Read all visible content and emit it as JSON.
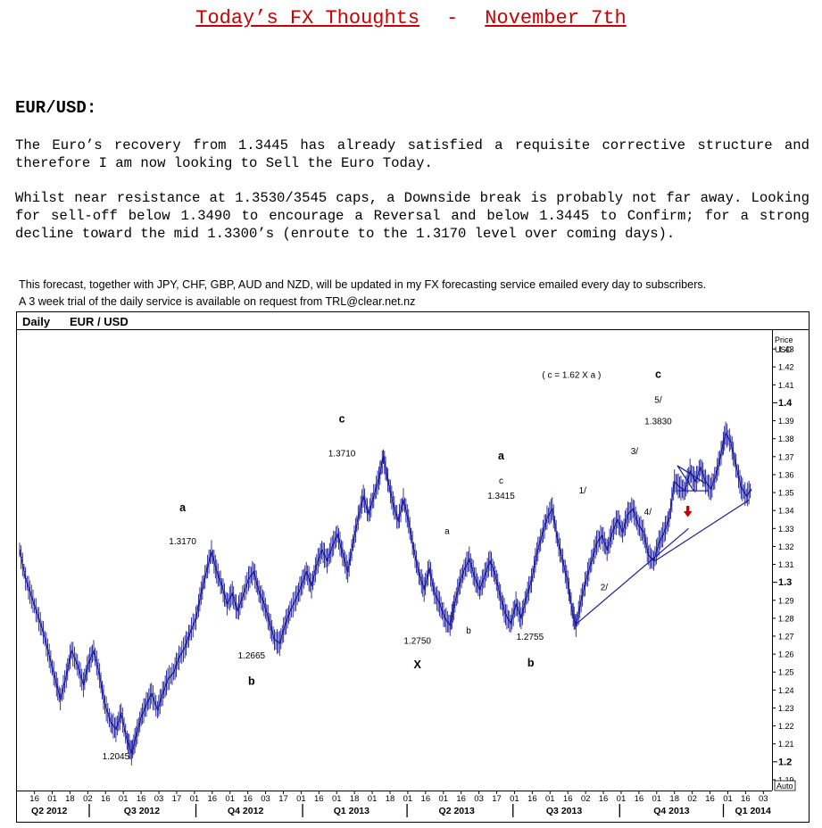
{
  "header": {
    "title_left": "Today’s FX Thoughts",
    "title_sep": "-",
    "title_right": "November 7th"
  },
  "section": {
    "title": "EUR/USD:",
    "paragraph1": "The Euro’s recovery from 1.3445 has already satisfied a requisite corrective structure and therefore I am now looking to Sell the Euro Today.",
    "paragraph2": "Whilst near resistance at 1.3530/3545 caps, a Downside break is probably not far away. Looking for sell-off below 1.3490 to encourage a Reversal and below 1.3445 to Confirm; for a strong decline toward the mid 1.3300’s (enroute to the 1.3170 level over coming days).",
    "note1": "This forecast, together with JPY, CHF, GBP, AUD and NZD, will be updated in my FX forecasting service emailed every day to subscribers.",
    "note2": "A 3 week trial of the daily service is available on request from TRL@clear.net.nz"
  },
  "chart_data": {
    "type": "line",
    "title": "EUR / USD",
    "period_label": "Daily",
    "ylabel": "Price USD",
    "auto_label": "Auto",
    "ylim": [
      1.185,
      1.44
    ],
    "y_ticks": [
      1.19,
      1.2,
      1.21,
      1.22,
      1.23,
      1.24,
      1.25,
      1.26,
      1.27,
      1.28,
      1.29,
      1.3,
      1.31,
      1.32,
      1.33,
      1.34,
      1.35,
      1.36,
      1.37,
      1.38,
      1.39,
      1.4,
      1.41,
      1.42,
      1.43
    ],
    "y_tick_labels": [
      "1.19",
      "1.2",
      "1.21",
      "1.22",
      "1.23",
      "1.24",
      "1.25",
      "1.26",
      "1.27",
      "1.28",
      "1.29",
      "1.3",
      "1.31",
      "1.32",
      "1.33",
      "1.34",
      "1.35",
      "1.36",
      "1.37",
      "1.38",
      "1.39",
      "1.4",
      "1.41",
      "1.42",
      "1.43"
    ],
    "y_bold_ticks": [
      1.2,
      1.3,
      1.4
    ],
    "x_range": [
      0,
      100
    ],
    "x_ticks": [
      {
        "x": 2.0,
        "label": "16"
      },
      {
        "x": 4.4,
        "label": "01"
      },
      {
        "x": 6.8,
        "label": "18"
      },
      {
        "x": 9.2,
        "label": "02"
      },
      {
        "x": 11.6,
        "label": "16"
      },
      {
        "x": 14.0,
        "label": "01"
      },
      {
        "x": 16.4,
        "label": "16"
      },
      {
        "x": 18.8,
        "label": "03"
      },
      {
        "x": 21.2,
        "label": "17"
      },
      {
        "x": 23.6,
        "label": "01"
      },
      {
        "x": 26.0,
        "label": "16"
      },
      {
        "x": 28.4,
        "label": "01"
      },
      {
        "x": 30.8,
        "label": "16"
      },
      {
        "x": 33.2,
        "label": "03"
      },
      {
        "x": 35.6,
        "label": "17"
      },
      {
        "x": 38.0,
        "label": "01"
      },
      {
        "x": 40.4,
        "label": "16"
      },
      {
        "x": 42.8,
        "label": "01"
      },
      {
        "x": 45.2,
        "label": "18"
      },
      {
        "x": 47.6,
        "label": "01"
      },
      {
        "x": 50.0,
        "label": "18"
      },
      {
        "x": 52.4,
        "label": "01"
      },
      {
        "x": 54.8,
        "label": "16"
      },
      {
        "x": 57.2,
        "label": "01"
      },
      {
        "x": 59.6,
        "label": "16"
      },
      {
        "x": 62.0,
        "label": "03"
      },
      {
        "x": 64.4,
        "label": "17"
      },
      {
        "x": 66.8,
        "label": "01"
      },
      {
        "x": 69.2,
        "label": "16"
      },
      {
        "x": 71.6,
        "label": "01"
      },
      {
        "x": 74.0,
        "label": "16"
      },
      {
        "x": 76.4,
        "label": "02"
      },
      {
        "x": 78.8,
        "label": "16"
      },
      {
        "x": 81.2,
        "label": "01"
      },
      {
        "x": 83.6,
        "label": "16"
      },
      {
        "x": 86.0,
        "label": "01"
      },
      {
        "x": 88.4,
        "label": "18"
      },
      {
        "x": 90.8,
        "label": "02"
      },
      {
        "x": 93.2,
        "label": "16"
      },
      {
        "x": 95.6,
        "label": "01"
      },
      {
        "x": 98.0,
        "label": "16"
      },
      {
        "x": 100.4,
        "label": "03"
      }
    ],
    "x_groups": [
      {
        "label": "Q2 2012",
        "x": 4.0,
        "sep": 9.4
      },
      {
        "label": "Q3 2012",
        "x": 16.5,
        "sep": 23.8
      },
      {
        "label": "Q4 2012",
        "x": 30.5,
        "sep": 38.2
      },
      {
        "label": "Q1 2013",
        "x": 44.8,
        "sep": 52.3
      },
      {
        "label": "Q2 2013",
        "x": 59.0,
        "sep": 66.6
      },
      {
        "label": "Q3 2013",
        "x": 73.5,
        "sep": 81.0
      },
      {
        "label": "Q4 2013",
        "x": 88.0,
        "sep": 95.0
      },
      {
        "label": "Q1 2014",
        "x": 99.0,
        "sep": null
      }
    ],
    "series": [
      {
        "values": [
          [
            0.0,
            1.318
          ],
          [
            0.8,
            1.302
          ],
          [
            1.6,
            1.292
          ],
          [
            2.4,
            1.282
          ],
          [
            3.2,
            1.272
          ],
          [
            4.0,
            1.259
          ],
          [
            4.8,
            1.246
          ],
          [
            5.5,
            1.235
          ],
          [
            6.3,
            1.248
          ],
          [
            7.0,
            1.262
          ],
          [
            7.8,
            1.254
          ],
          [
            8.6,
            1.243
          ],
          [
            9.3,
            1.255
          ],
          [
            10.0,
            1.262
          ],
          [
            10.8,
            1.248
          ],
          [
            11.5,
            1.232
          ],
          [
            12.3,
            1.222
          ],
          [
            13.0,
            1.218
          ],
          [
            13.7,
            1.227
          ],
          [
            14.5,
            1.212
          ],
          [
            15.1,
            1.205
          ],
          [
            15.7,
            1.214
          ],
          [
            16.4,
            1.225
          ],
          [
            17.1,
            1.232
          ],
          [
            17.8,
            1.238
          ],
          [
            18.6,
            1.229
          ],
          [
            19.3,
            1.238
          ],
          [
            20.0,
            1.246
          ],
          [
            20.8,
            1.25
          ],
          [
            21.5,
            1.258
          ],
          [
            22.3,
            1.264
          ],
          [
            23.0,
            1.272
          ],
          [
            23.8,
            1.28
          ],
          [
            24.5,
            1.294
          ],
          [
            25.2,
            1.306
          ],
          [
            25.9,
            1.317
          ],
          [
            26.6,
            1.306
          ],
          [
            27.3,
            1.298
          ],
          [
            28.0,
            1.288
          ],
          [
            28.7,
            1.294
          ],
          [
            29.4,
            1.284
          ],
          [
            30.1,
            1.292
          ],
          [
            30.9,
            1.302
          ],
          [
            31.6,
            1.306
          ],
          [
            32.3,
            1.295
          ],
          [
            33.0,
            1.288
          ],
          [
            33.7,
            1.278
          ],
          [
            34.4,
            1.268
          ],
          [
            35.1,
            1.266
          ],
          [
            35.8,
            1.276
          ],
          [
            36.5,
            1.284
          ],
          [
            37.3,
            1.291
          ],
          [
            38.0,
            1.298
          ],
          [
            38.7,
            1.306
          ],
          [
            39.4,
            1.298
          ],
          [
            40.1,
            1.31
          ],
          [
            40.8,
            1.318
          ],
          [
            41.5,
            1.312
          ],
          [
            42.2,
            1.32
          ],
          [
            42.9,
            1.327
          ],
          [
            43.6,
            1.316
          ],
          [
            44.3,
            1.306
          ],
          [
            45.0,
            1.322
          ],
          [
            45.7,
            1.336
          ],
          [
            46.4,
            1.348
          ],
          [
            47.1,
            1.338
          ],
          [
            47.8,
            1.348
          ],
          [
            48.5,
            1.358
          ],
          [
            49.1,
            1.37
          ],
          [
            49.7,
            1.357
          ],
          [
            50.4,
            1.344
          ],
          [
            51.1,
            1.334
          ],
          [
            51.8,
            1.346
          ],
          [
            52.5,
            1.334
          ],
          [
            53.2,
            1.318
          ],
          [
            53.9,
            1.305
          ],
          [
            54.6,
            1.296
          ],
          [
            55.3,
            1.308
          ],
          [
            56.0,
            1.294
          ],
          [
            56.7,
            1.288
          ],
          [
            57.4,
            1.28
          ],
          [
            58.1,
            1.276
          ],
          [
            58.6,
            1.286
          ],
          [
            59.3,
            1.298
          ],
          [
            60.0,
            1.307
          ],
          [
            60.7,
            1.313
          ],
          [
            61.4,
            1.303
          ],
          [
            62.1,
            1.296
          ],
          [
            62.8,
            1.304
          ],
          [
            63.5,
            1.312
          ],
          [
            64.2,
            1.304
          ],
          [
            64.9,
            1.292
          ],
          [
            65.6,
            1.282
          ],
          [
            66.3,
            1.277
          ],
          [
            67.0,
            1.288
          ],
          [
            67.7,
            1.28
          ],
          [
            68.4,
            1.292
          ],
          [
            69.1,
            1.301
          ],
          [
            69.8,
            1.316
          ],
          [
            70.5,
            1.326
          ],
          [
            71.2,
            1.336
          ],
          [
            71.9,
            1.341
          ],
          [
            72.6,
            1.324
          ],
          [
            73.3,
            1.312
          ],
          [
            74.0,
            1.3
          ],
          [
            74.6,
            1.284
          ],
          [
            75.1,
            1.276
          ],
          [
            75.8,
            1.29
          ],
          [
            76.5,
            1.302
          ],
          [
            77.2,
            1.312
          ],
          [
            77.9,
            1.322
          ],
          [
            78.6,
            1.326
          ],
          [
            79.3,
            1.318
          ],
          [
            80.0,
            1.328
          ],
          [
            80.7,
            1.335
          ],
          [
            81.4,
            1.328
          ],
          [
            82.1,
            1.338
          ],
          [
            82.8,
            1.341
          ],
          [
            83.5,
            1.332
          ],
          [
            84.2,
            1.328
          ],
          [
            84.9,
            1.315
          ],
          [
            85.6,
            1.312
          ],
          [
            86.3,
            1.322
          ],
          [
            87.0,
            1.328
          ],
          [
            87.7,
            1.336
          ],
          [
            88.4,
            1.356
          ],
          [
            89.1,
            1.353
          ],
          [
            89.8,
            1.351
          ],
          [
            90.5,
            1.362
          ],
          [
            91.2,
            1.356
          ],
          [
            91.9,
            1.364
          ],
          [
            92.6,
            1.356
          ],
          [
            93.3,
            1.352
          ],
          [
            94.0,
            1.36
          ],
          [
            94.7,
            1.372
          ],
          [
            95.3,
            1.383
          ],
          [
            96.0,
            1.378
          ],
          [
            96.7,
            1.365
          ],
          [
            97.4,
            1.353
          ],
          [
            98.1,
            1.348
          ],
          [
            98.8,
            1.352
          ]
        ]
      }
    ],
    "trendlines": [
      {
        "from": [
          75.2,
          1.277
        ],
        "to": [
          90.3,
          1.33
        ]
      },
      {
        "from": [
          85.8,
          1.312
        ],
        "to": [
          98.5,
          1.346
        ]
      },
      {
        "from": [
          88.8,
          1.365
        ],
        "to": [
          92.6,
          1.355
        ]
      },
      {
        "from": [
          88.8,
          1.365
        ],
        "to": [
          91.0,
          1.351
        ]
      },
      {
        "from": [
          88.8,
          1.351
        ],
        "to": [
          93.0,
          1.351
        ]
      }
    ],
    "annotations": [
      {
        "text": "1.2045",
        "x": 13.0,
        "y": 1.2015
      },
      {
        "text": "a",
        "x": 22.0,
        "y": 1.3395,
        "bold": true
      },
      {
        "text": "1.3170",
        "x": 22.0,
        "y": 1.3212
      },
      {
        "text": "1.2665",
        "x": 31.3,
        "y": 1.2575
      },
      {
        "text": "b",
        "x": 31.3,
        "y": 1.243,
        "bold": true
      },
      {
        "text": "c",
        "x": 43.5,
        "y": 1.389,
        "bold": true
      },
      {
        "text": "1.3710",
        "x": 43.5,
        "y": 1.3702
      },
      {
        "text": "1.2750",
        "x": 53.7,
        "y": 1.2658
      },
      {
        "text": "X",
        "x": 53.7,
        "y": 1.252,
        "bold": true
      },
      {
        "text": "a",
        "x": 57.7,
        "y": 1.327
      },
      {
        "text": "b",
        "x": 60.6,
        "y": 1.2714
      },
      {
        "text": "a",
        "x": 65.0,
        "y": 1.3685,
        "bold": true
      },
      {
        "text": "c",
        "x": 65.0,
        "y": 1.355
      },
      {
        "text": "1.3415",
        "x": 65.0,
        "y": 1.3465
      },
      {
        "text": "1.2755",
        "x": 68.9,
        "y": 1.268
      },
      {
        "text": "b",
        "x": 69.0,
        "y": 1.253,
        "bold": true
      },
      {
        "text": "1/",
        "x": 76.0,
        "y": 1.3495
      },
      {
        "text": "2/",
        "x": 78.9,
        "y": 1.2955
      },
      {
        "text": "3/",
        "x": 83.0,
        "y": 1.3715
      },
      {
        "text": "4/",
        "x": 84.8,
        "y": 1.3375
      },
      {
        "text": "5/",
        "x": 86.2,
        "y": 1.4
      },
      {
        "text": "1.3830",
        "x": 86.2,
        "y": 1.388
      },
      {
        "text": "c",
        "x": 86.2,
        "y": 1.414,
        "bold": true
      },
      {
        "text": "( c = 1.62 X a )",
        "x": 74.5,
        "y": 1.414
      }
    ],
    "arrow": {
      "x": 90.2,
      "y": 1.3385,
      "color": "#cc0000"
    },
    "grid": false,
    "legend": "none",
    "colors": {
      "line": "#1a1a9c",
      "annotation": "#000000"
    }
  }
}
